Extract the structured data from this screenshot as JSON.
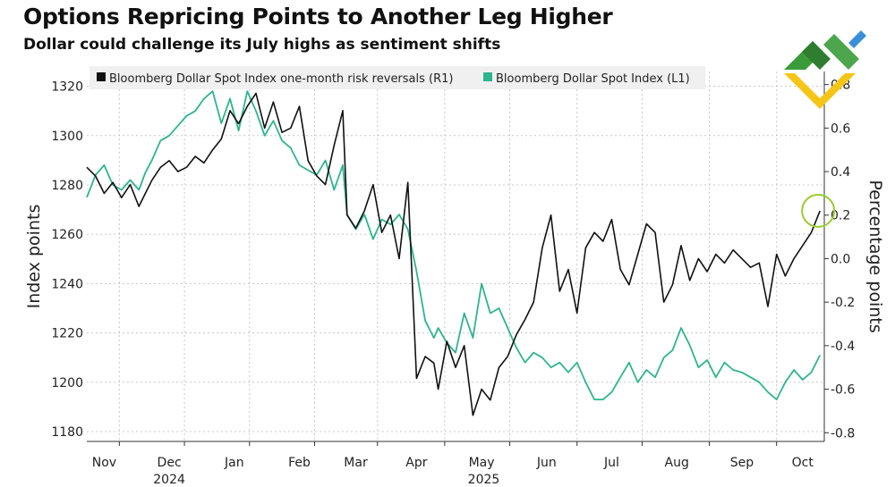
{
  "chart_data": {
    "type": "line",
    "title": "Options Repricing Points to Another Leg Higher",
    "subtitle": "Dollar could challenge its July highs as sentiment shifts",
    "ylabel_left": "Index points",
    "ylabel_right": "Percentage points",
    "ylim_left": [
      1176,
      1326
    ],
    "ylim_right": [
      -0.84,
      0.86
    ],
    "left_ticks": [
      "1180",
      "1200",
      "1220",
      "1240",
      "1260",
      "1280",
      "1300",
      "1320"
    ],
    "right_ticks": [
      "-0.8",
      "-0.6",
      "-0.4",
      "-0.2",
      "0.0",
      "0.2",
      "0.4",
      "0.6",
      "0.8"
    ],
    "month_labels": [
      "Nov",
      "Dec",
      "Jan",
      "Feb",
      "Mar",
      "Apr",
      "May",
      "Jun",
      "Jul",
      "Aug",
      "Sep",
      "Oct"
    ],
    "year_labels": [
      "2024",
      "2025"
    ],
    "x_range_days": [
      0,
      340
    ],
    "series": [
      {
        "name": "Bloomberg Dollar Spot Index one-month risk reversals (R1)",
        "axis": "right",
        "color": "#111111",
        "x": [
          0,
          4,
          8,
          12,
          16,
          20,
          24,
          27,
          30,
          34,
          38,
          42,
          46,
          50,
          54,
          58,
          62,
          66,
          70,
          74,
          78,
          82,
          86,
          90,
          94,
          98,
          102,
          106,
          110,
          114,
          118,
          120,
          124,
          128,
          132,
          136,
          140,
          144,
          148,
          152,
          156,
          160,
          162,
          166,
          170,
          174,
          178,
          182,
          186,
          190,
          194,
          198,
          202,
          206,
          210,
          214,
          218,
          222,
          226,
          230,
          234,
          238,
          242,
          246,
          250,
          254,
          258,
          262,
          266,
          270,
          274,
          278,
          282,
          286,
          290,
          294,
          298,
          302,
          306,
          310,
          314,
          318,
          322,
          326,
          330,
          334,
          338
        ],
        "values": [
          0.42,
          0.38,
          0.3,
          0.35,
          0.28,
          0.34,
          0.24,
          0.3,
          0.36,
          0.42,
          0.45,
          0.4,
          0.42,
          0.47,
          0.44,
          0.5,
          0.55,
          0.68,
          0.62,
          0.7,
          0.76,
          0.6,
          0.72,
          0.58,
          0.6,
          0.7,
          0.45,
          0.38,
          0.34,
          0.52,
          0.68,
          0.2,
          0.14,
          0.22,
          0.34,
          0.12,
          0.2,
          0.0,
          0.35,
          -0.55,
          -0.45,
          -0.48,
          -0.6,
          -0.38,
          -0.5,
          -0.4,
          -0.72,
          -0.6,
          -0.65,
          -0.5,
          -0.45,
          -0.35,
          -0.28,
          -0.2,
          0.05,
          0.2,
          -0.15,
          -0.05,
          -0.25,
          0.05,
          0.12,
          0.08,
          0.18,
          -0.05,
          -0.12,
          0.02,
          0.16,
          0.12,
          -0.2,
          -0.12,
          0.06,
          -0.1,
          0.0,
          -0.06,
          0.02,
          -0.02,
          0.04,
          0.0,
          -0.04,
          -0.02,
          -0.22,
          0.02,
          -0.08,
          0.0,
          0.06,
          0.12,
          0.22
        ]
      },
      {
        "name": "Bloomberg Dollar Spot Index (L1)",
        "axis": "left",
        "color": "#2db58f",
        "x": [
          0,
          4,
          8,
          12,
          16,
          20,
          24,
          27,
          30,
          34,
          38,
          42,
          46,
          50,
          54,
          58,
          62,
          66,
          70,
          74,
          78,
          82,
          86,
          90,
          94,
          98,
          102,
          106,
          110,
          114,
          118,
          120,
          124,
          128,
          132,
          136,
          140,
          144,
          148,
          152,
          156,
          160,
          162,
          166,
          170,
          174,
          178,
          182,
          186,
          190,
          194,
          198,
          202,
          206,
          210,
          214,
          218,
          222,
          226,
          230,
          234,
          238,
          242,
          246,
          250,
          254,
          258,
          262,
          266,
          270,
          274,
          278,
          282,
          286,
          290,
          294,
          298,
          302,
          306,
          310,
          314,
          318,
          322,
          326,
          330,
          334,
          338
        ],
        "values": [
          1275,
          1284,
          1288,
          1280,
          1278,
          1282,
          1278,
          1285,
          1290,
          1298,
          1300,
          1304,
          1308,
          1310,
          1315,
          1318,
          1305,
          1315,
          1302,
          1318,
          1310,
          1300,
          1306,
          1298,
          1295,
          1288,
          1286,
          1284,
          1290,
          1278,
          1288,
          1268,
          1262,
          1268,
          1258,
          1266,
          1264,
          1268,
          1262,
          1245,
          1225,
          1218,
          1222,
          1216,
          1212,
          1228,
          1218,
          1240,
          1228,
          1230,
          1222,
          1214,
          1208,
          1212,
          1210,
          1206,
          1208,
          1204,
          1208,
          1200,
          1193,
          1193,
          1196,
          1202,
          1208,
          1200,
          1205,
          1202,
          1210,
          1213,
          1222,
          1215,
          1206,
          1209,
          1202,
          1208,
          1205,
          1204,
          1202,
          1200,
          1196,
          1193,
          1200,
          1205,
          1201,
          1204,
          1211
        ]
      }
    ],
    "annotation": "circle at latest risk-reversal value"
  },
  "logo": "brand-logo"
}
